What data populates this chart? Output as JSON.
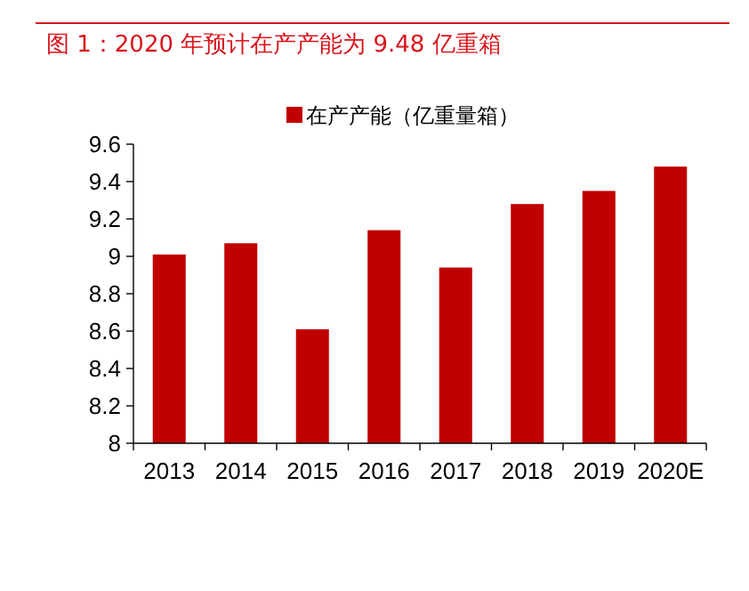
{
  "chart_data": {
    "type": "bar",
    "title": "图 1：2020 年预计在产产能为 9.48 亿重箱",
    "categories": [
      "2013",
      "2014",
      "2015",
      "2016",
      "2017",
      "2018",
      "2019",
      "2020E"
    ],
    "series": [
      {
        "name": "在产产能（亿重量箱）",
        "color": "#c00000",
        "values": [
          9.01,
          9.07,
          8.61,
          9.14,
          8.94,
          9.28,
          9.35,
          9.48
        ]
      }
    ],
    "ylim": [
      8,
      9.6
    ],
    "yticks": [
      8,
      8.2,
      8.4,
      8.6,
      8.8,
      9,
      9.2,
      9.4,
      9.6
    ],
    "legend": "top",
    "grid": false
  }
}
